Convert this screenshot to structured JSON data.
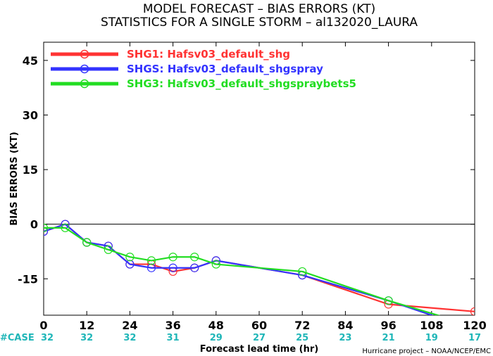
{
  "chart_data": {
    "type": "line",
    "title": "MODEL FORECAST – BIAS ERRORS (KT)",
    "subtitle": "STATISTICS FOR A SINGLE STORM – al132020_LAURA",
    "ylabel": "BIAS ERRORS (KT)",
    "xlabel": "Forecast lead time (hr)",
    "credit": "Hurricane project – NOAA/NCEP/EMC",
    "case_label": "#CASE",
    "xlim": [
      0,
      120
    ],
    "ylim": [
      -25,
      50
    ],
    "xticks": [
      0,
      12,
      24,
      36,
      48,
      60,
      72,
      84,
      96,
      108,
      120
    ],
    "yticks": [
      -15,
      0,
      15,
      30,
      45
    ],
    "case_counts": [
      "32",
      "32",
      "32",
      "31",
      "29",
      "27",
      "25",
      "23",
      "21",
      "19",
      "17"
    ],
    "zero_line": true,
    "grid": false,
    "legend_position": "top-left",
    "series": [
      {
        "name": "SHG1: Hafsv03_default_shg",
        "color": "#ff3333",
        "points": [
          [
            0,
            -2
          ],
          [
            6,
            0
          ],
          [
            12,
            -5
          ],
          [
            18,
            -6
          ],
          [
            24,
            -11
          ],
          [
            30,
            -11
          ],
          [
            36,
            -13
          ],
          [
            42,
            -12
          ],
          [
            48,
            -10
          ],
          [
            72,
            -14
          ],
          [
            96,
            -22
          ],
          [
            120,
            -24
          ]
        ]
      },
      {
        "name": "SHGS: Hafsv03_default_shgspray",
        "color": "#3333ff",
        "points": [
          [
            0,
            -2
          ],
          [
            6,
            0
          ],
          [
            12,
            -5
          ],
          [
            18,
            -6
          ],
          [
            24,
            -11
          ],
          [
            30,
            -12
          ],
          [
            36,
            -12
          ],
          [
            42,
            -12
          ],
          [
            48,
            -10
          ],
          [
            72,
            -14
          ],
          [
            96,
            -21
          ],
          [
            120,
            -29
          ]
        ]
      },
      {
        "name": "SHG3: Hafsv03_default_shgspraybets5",
        "color": "#22dd22",
        "points": [
          [
            0,
            -1
          ],
          [
            6,
            -1
          ],
          [
            12,
            -5
          ],
          [
            18,
            -7
          ],
          [
            24,
            -9
          ],
          [
            30,
            -10
          ],
          [
            36,
            -9
          ],
          [
            42,
            -9
          ],
          [
            48,
            -11
          ],
          [
            72,
            -13
          ],
          [
            96,
            -21
          ],
          [
            120,
            -28
          ]
        ]
      }
    ]
  }
}
